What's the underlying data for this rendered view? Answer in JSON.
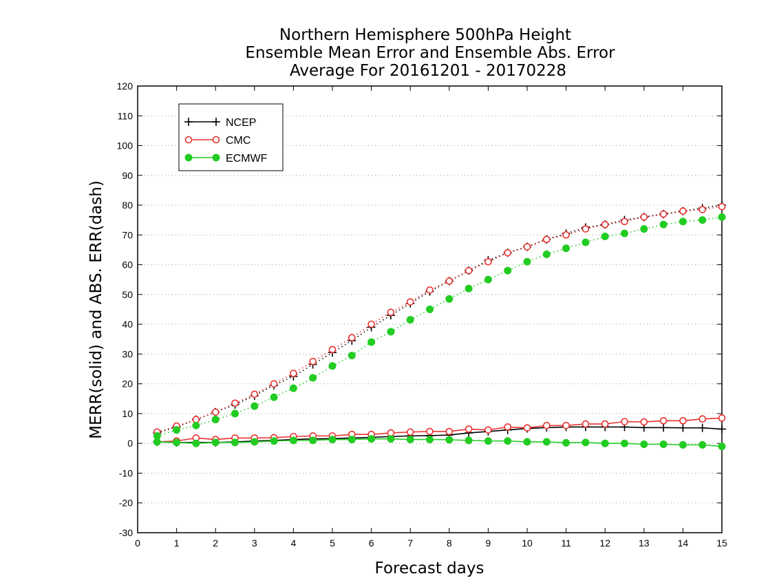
{
  "chart_data": {
    "type": "line",
    "title": [
      "Northern Hemisphere 500hPa Height",
      "Ensemble Mean Error and Ensemble Abs. Error",
      "Average For 20161201 - 20170228"
    ],
    "xlabel": "Forecast days",
    "ylabel": "MERR(solid) and ABS. ERR(dash)",
    "xlim": [
      0,
      15
    ],
    "ylim": [
      -30,
      120
    ],
    "xticks": [
      0,
      1,
      2,
      3,
      4,
      5,
      6,
      7,
      8,
      9,
      10,
      11,
      12,
      13,
      14,
      15
    ],
    "yticks": [
      -30,
      -20,
      -10,
      0,
      10,
      20,
      30,
      40,
      50,
      60,
      70,
      80,
      90,
      100,
      110,
      120
    ],
    "grid": "horizontal dotted",
    "legend_position": "top-left",
    "x": [
      0.5,
      1,
      1.5,
      2,
      2.5,
      3,
      3.5,
      4,
      4.5,
      5,
      5.5,
      6,
      6.5,
      7,
      7.5,
      8,
      8.5,
      9,
      9.5,
      10,
      10.5,
      11,
      11.5,
      12,
      12.5,
      13,
      13.5,
      14,
      14.5,
      15
    ],
    "series": [
      {
        "name": "NCEP",
        "color": "#000000",
        "marker": "plus",
        "merr": [
          0.5,
          0.3,
          0.3,
          0.3,
          0.5,
          0.8,
          1.0,
          1.3,
          1.5,
          1.6,
          1.8,
          2.0,
          2.3,
          2.5,
          2.6,
          2.8,
          3.5,
          4.0,
          4.5,
          5.0,
          5.3,
          5.5,
          5.5,
          5.5,
          5.5,
          5.3,
          5.3,
          5.2,
          5.2,
          4.8
        ],
        "abs_err": [
          3.5,
          5.5,
          8.0,
          10.5,
          13.0,
          16.0,
          19.5,
          22.5,
          26.5,
          30.5,
          34.5,
          39.0,
          43.0,
          47.0,
          51.0,
          54.5,
          58.0,
          61.5,
          64.0,
          66.0,
          68.5,
          70.5,
          72.5,
          73.5,
          75.0,
          76.0,
          77.0,
          78.0,
          79.0,
          80.0
        ]
      },
      {
        "name": "CMC",
        "color": "#e8302e",
        "marker": "open-circle",
        "merr": [
          0.5,
          0.8,
          1.8,
          1.3,
          1.8,
          1.8,
          1.9,
          2.3,
          2.5,
          2.5,
          3.0,
          3.0,
          3.5,
          3.8,
          4.0,
          4.0,
          4.8,
          4.5,
          5.5,
          5.2,
          6.0,
          6.0,
          6.5,
          6.5,
          7.3,
          7.2,
          7.6,
          7.6,
          8.2,
          8.5
        ],
        "abs_err": [
          3.8,
          5.8,
          8.0,
          10.5,
          13.5,
          16.5,
          20.0,
          23.5,
          27.5,
          31.5,
          35.5,
          40.0,
          44.0,
          47.5,
          51.5,
          54.5,
          58.0,
          61.0,
          64.0,
          66.0,
          68.5,
          70.0,
          72.0,
          73.5,
          74.5,
          76.0,
          77.0,
          78.0,
          78.5,
          79.5
        ]
      },
      {
        "name": "ECMWF",
        "color": "#22cc22",
        "marker": "filled-circle",
        "merr": [
          0.5,
          0.3,
          0.0,
          0.3,
          0.3,
          0.5,
          0.8,
          1.0,
          1.0,
          1.3,
          1.3,
          1.5,
          1.5,
          1.3,
          1.3,
          1.2,
          1.0,
          0.8,
          0.8,
          0.5,
          0.5,
          0.2,
          0.3,
          0.0,
          0.0,
          -0.3,
          -0.3,
          -0.5,
          -0.5,
          -1.0
        ],
        "abs_err": [
          2.5,
          4.5,
          6.0,
          8.0,
          10.0,
          12.5,
          15.5,
          18.5,
          22.0,
          26.0,
          29.5,
          34.0,
          37.5,
          41.5,
          45.0,
          48.5,
          52.0,
          55.0,
          58.0,
          61.0,
          63.5,
          65.5,
          67.5,
          69.5,
          70.5,
          72.0,
          73.5,
          74.5,
          75.0,
          76.0
        ]
      }
    ]
  }
}
